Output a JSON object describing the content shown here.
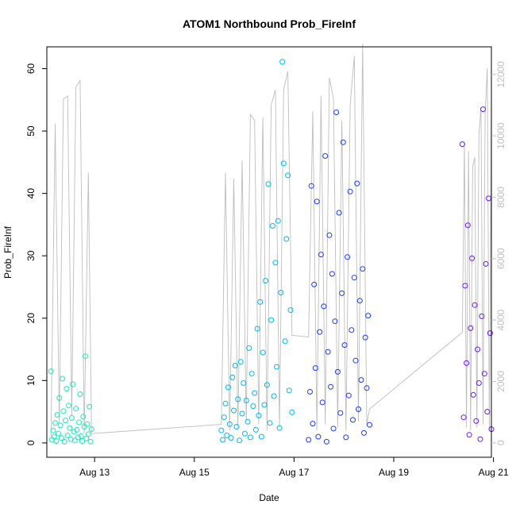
{
  "chart_data": {
    "type": "scatter",
    "title": "ATOM1 Northbound Prob_FireInf",
    "xlabel": "Date",
    "ylabel": "Prob_FireInf",
    "x_axis": {
      "type": "date",
      "range": [
        "2021-08-12T01:00",
        "2021-08-20T23:00"
      ],
      "ticks": [
        {
          "value": "2021-08-13",
          "label": "Aug 13"
        },
        {
          "value": "2021-08-15",
          "label": "Aug 15"
        },
        {
          "value": "2021-08-17",
          "label": "Aug 17"
        },
        {
          "value": "2021-08-19",
          "label": "Aug 19"
        },
        {
          "value": "2021-08-21",
          "label": "Aug 21"
        }
      ]
    },
    "y_left": {
      "range": [
        -2.3,
        63.5
      ],
      "ticks": [
        0,
        10,
        20,
        30,
        40,
        50,
        60
      ]
    },
    "y_right": {
      "range": [
        -470,
        12900
      ],
      "ticks": [
        0,
        2000,
        4000,
        6000,
        8000,
        10000,
        12000
      ]
    },
    "grid": false,
    "colors": {
      "series_1": "#1de9b6",
      "series_2": "#00b8f5",
      "series_3": "#1a3df2",
      "series_4": "#6a1af2",
      "secondary_line": "#bebebe"
    },
    "series": [
      {
        "color_key": "series_1",
        "points": [
          {
            "t": "2021-08-12T03:00",
            "y": 11.5
          },
          {
            "t": "2021-08-12T03:30",
            "y": 0.5
          },
          {
            "t": "2021-08-12T04:00",
            "y": 2.0
          },
          {
            "t": "2021-08-12T04:30",
            "y": 1.0
          },
          {
            "t": "2021-08-12T05:00",
            "y": 3.2
          },
          {
            "t": "2021-08-12T05:30",
            "y": 0.3
          },
          {
            "t": "2021-08-12T06:00",
            "y": 4.5
          },
          {
            "t": "2021-08-12T06:30",
            "y": 1.5
          },
          {
            "t": "2021-08-12T07:00",
            "y": 7.2
          },
          {
            "t": "2021-08-12T07:30",
            "y": 2.8
          },
          {
            "t": "2021-08-12T08:00",
            "y": 0.8
          },
          {
            "t": "2021-08-12T08:30",
            "y": 10.3
          },
          {
            "t": "2021-08-12T09:00",
            "y": 5.1
          },
          {
            "t": "2021-08-12T09:30",
            "y": 0.2
          },
          {
            "t": "2021-08-12T10:00",
            "y": 3.6
          },
          {
            "t": "2021-08-12T10:30",
            "y": 8.7
          },
          {
            "t": "2021-08-12T11:00",
            "y": 1.2
          },
          {
            "t": "2021-08-12T11:30",
            "y": 6.0
          },
          {
            "t": "2021-08-12T12:00",
            "y": 2.4
          },
          {
            "t": "2021-08-12T12:30",
            "y": 0.6
          },
          {
            "t": "2021-08-12T13:00",
            "y": 4.0
          },
          {
            "t": "2021-08-12T13:30",
            "y": 9.4
          },
          {
            "t": "2021-08-12T14:00",
            "y": 1.8
          },
          {
            "t": "2021-08-12T14:30",
            "y": 0.4
          },
          {
            "t": "2021-08-12T15:00",
            "y": 5.5
          },
          {
            "t": "2021-08-12T15:30",
            "y": 2.1
          },
          {
            "t": "2021-08-12T16:00",
            "y": 0.9
          },
          {
            "t": "2021-08-12T16:30",
            "y": 3.3
          },
          {
            "t": "2021-08-12T17:00",
            "y": 7.8
          },
          {
            "t": "2021-08-12T17:30",
            "y": 1.1
          },
          {
            "t": "2021-08-12T18:00",
            "y": 0.3
          },
          {
            "t": "2021-08-12T18:30",
            "y": 4.2
          },
          {
            "t": "2021-08-12T19:00",
            "y": 2.6
          },
          {
            "t": "2021-08-12T19:30",
            "y": 13.9
          },
          {
            "t": "2021-08-12T20:00",
            "y": 0.7
          },
          {
            "t": "2021-08-12T20:30",
            "y": 3.0
          },
          {
            "t": "2021-08-12T21:00",
            "y": 1.4
          },
          {
            "t": "2021-08-12T21:30",
            "y": 5.8
          },
          {
            "t": "2021-08-12T22:00",
            "y": 0.2
          },
          {
            "t": "2021-08-12T22:30",
            "y": 2.2
          }
        ]
      },
      {
        "color_key": "series_2",
        "points": [
          {
            "t": "2021-08-15T13:00",
            "y": 2.0
          },
          {
            "t": "2021-08-15T13:40",
            "y": 0.5
          },
          {
            "t": "2021-08-15T14:20",
            "y": 4.1
          },
          {
            "t": "2021-08-15T15:00",
            "y": 6.3
          },
          {
            "t": "2021-08-15T15:40",
            "y": 1.2
          },
          {
            "t": "2021-08-15T16:20",
            "y": 8.9
          },
          {
            "t": "2021-08-15T17:00",
            "y": 3.0
          },
          {
            "t": "2021-08-15T17:40",
            "y": 0.8
          },
          {
            "t": "2021-08-15T18:20",
            "y": 10.5
          },
          {
            "t": "2021-08-15T19:00",
            "y": 5.2
          },
          {
            "t": "2021-08-15T19:40",
            "y": 12.4
          },
          {
            "t": "2021-08-15T20:20",
            "y": 2.6
          },
          {
            "t": "2021-08-15T21:00",
            "y": 7.0
          },
          {
            "t": "2021-08-15T21:40",
            "y": 0.4
          },
          {
            "t": "2021-08-15T22:20",
            "y": 13.0
          },
          {
            "t": "2021-08-15T23:00",
            "y": 4.7
          },
          {
            "t": "2021-08-15T23:40",
            "y": 9.6
          },
          {
            "t": "2021-08-16T00:20",
            "y": 1.5
          },
          {
            "t": "2021-08-16T01:00",
            "y": 6.8
          },
          {
            "t": "2021-08-16T01:40",
            "y": 3.4
          },
          {
            "t": "2021-08-16T02:20",
            "y": 15.2
          },
          {
            "t": "2021-08-16T03:00",
            "y": 0.9
          },
          {
            "t": "2021-08-16T03:40",
            "y": 11.1
          },
          {
            "t": "2021-08-16T04:20",
            "y": 5.9
          },
          {
            "t": "2021-08-16T05:00",
            "y": 8.0
          },
          {
            "t": "2021-08-16T05:40",
            "y": 2.1
          },
          {
            "t": "2021-08-16T06:20",
            "y": 18.3
          },
          {
            "t": "2021-08-16T07:00",
            "y": 4.4
          },
          {
            "t": "2021-08-16T07:40",
            "y": 22.6
          },
          {
            "t": "2021-08-16T08:20",
            "y": 1.0
          },
          {
            "t": "2021-08-16T09:00",
            "y": 14.5
          },
          {
            "t": "2021-08-16T09:40",
            "y": 6.1
          },
          {
            "t": "2021-08-16T10:20",
            "y": 26.0
          },
          {
            "t": "2021-08-16T11:00",
            "y": 9.3
          },
          {
            "t": "2021-08-16T11:40",
            "y": 41.5
          },
          {
            "t": "2021-08-16T12:20",
            "y": 3.2
          },
          {
            "t": "2021-08-16T13:00",
            "y": 19.7
          },
          {
            "t": "2021-08-16T13:40",
            "y": 34.8
          },
          {
            "t": "2021-08-16T14:20",
            "y": 7.5
          },
          {
            "t": "2021-08-16T15:00",
            "y": 28.9
          },
          {
            "t": "2021-08-16T15:40",
            "y": 12.2
          },
          {
            "t": "2021-08-16T16:20",
            "y": 35.6
          },
          {
            "t": "2021-08-16T17:00",
            "y": 2.4
          },
          {
            "t": "2021-08-16T17:40",
            "y": 24.1
          },
          {
            "t": "2021-08-16T18:20",
            "y": 61.1
          },
          {
            "t": "2021-08-16T19:00",
            "y": 44.8
          },
          {
            "t": "2021-08-16T19:40",
            "y": 16.3
          },
          {
            "t": "2021-08-16T20:20",
            "y": 32.7
          },
          {
            "t": "2021-08-16T21:00",
            "y": 42.9
          },
          {
            "t": "2021-08-16T21:40",
            "y": 8.4
          },
          {
            "t": "2021-08-16T22:20",
            "y": 21.3
          },
          {
            "t": "2021-08-16T23:00",
            "y": 4.9
          }
        ]
      },
      {
        "color_key": "series_3",
        "points": [
          {
            "t": "2021-08-17T07:00",
            "y": 0.5
          },
          {
            "t": "2021-08-17T07:40",
            "y": 8.2
          },
          {
            "t": "2021-08-17T08:20",
            "y": 41.2
          },
          {
            "t": "2021-08-17T09:00",
            "y": 3.1
          },
          {
            "t": "2021-08-17T09:40",
            "y": 25.4
          },
          {
            "t": "2021-08-17T10:20",
            "y": 12.0
          },
          {
            "t": "2021-08-17T11:00",
            "y": 38.7
          },
          {
            "t": "2021-08-17T11:40",
            "y": 1.0
          },
          {
            "t": "2021-08-17T12:20",
            "y": 17.8
          },
          {
            "t": "2021-08-17T13:00",
            "y": 30.2
          },
          {
            "t": "2021-08-17T13:40",
            "y": 6.5
          },
          {
            "t": "2021-08-17T14:20",
            "y": 21.9
          },
          {
            "t": "2021-08-17T15:00",
            "y": 46.0
          },
          {
            "t": "2021-08-17T15:40",
            "y": 0.2
          },
          {
            "t": "2021-08-17T16:20",
            "y": 14.6
          },
          {
            "t": "2021-08-17T17:00",
            "y": 33.3
          },
          {
            "t": "2021-08-17T17:40",
            "y": 9.0
          },
          {
            "t": "2021-08-17T18:20",
            "y": 27.1
          },
          {
            "t": "2021-08-17T19:00",
            "y": 2.3
          },
          {
            "t": "2021-08-17T19:40",
            "y": 19.5
          },
          {
            "t": "2021-08-17T20:20",
            "y": 53.0
          },
          {
            "t": "2021-08-17T21:00",
            "y": 11.4
          },
          {
            "t": "2021-08-17T21:40",
            "y": 36.9
          },
          {
            "t": "2021-08-17T22:20",
            "y": 4.8
          },
          {
            "t": "2021-08-17T23:00",
            "y": 24.0
          },
          {
            "t": "2021-08-17T23:40",
            "y": 48.2
          },
          {
            "t": "2021-08-18T00:20",
            "y": 15.7
          },
          {
            "t": "2021-08-18T01:00",
            "y": 0.9
          },
          {
            "t": "2021-08-18T01:40",
            "y": 29.8
          },
          {
            "t": "2021-08-18T02:20",
            "y": 7.6
          },
          {
            "t": "2021-08-18T03:00",
            "y": 40.3
          },
          {
            "t": "2021-08-18T03:40",
            "y": 18.1
          },
          {
            "t": "2021-08-18T04:20",
            "y": 3.7
          },
          {
            "t": "2021-08-18T05:00",
            "y": 26.5
          },
          {
            "t": "2021-08-18T05:40",
            "y": 13.2
          },
          {
            "t": "2021-08-18T06:20",
            "y": 41.6
          },
          {
            "t": "2021-08-18T07:00",
            "y": 5.4
          },
          {
            "t": "2021-08-18T07:40",
            "y": 22.8
          },
          {
            "t": "2021-08-18T08:20",
            "y": 10.1
          },
          {
            "t": "2021-08-18T09:00",
            "y": 27.9
          },
          {
            "t": "2021-08-18T09:40",
            "y": 1.6
          },
          {
            "t": "2021-08-18T10:20",
            "y": 16.9
          },
          {
            "t": "2021-08-18T11:00",
            "y": 8.8
          },
          {
            "t": "2021-08-18T11:40",
            "y": 20.4
          },
          {
            "t": "2021-08-18T12:20",
            "y": 2.9
          }
        ]
      },
      {
        "color_key": "series_4",
        "points": [
          {
            "t": "2021-08-20T09:00",
            "y": 47.9
          },
          {
            "t": "2021-08-20T09:40",
            "y": 4.1
          },
          {
            "t": "2021-08-20T10:20",
            "y": 25.2
          },
          {
            "t": "2021-08-20T11:00",
            "y": 12.8
          },
          {
            "t": "2021-08-20T11:40",
            "y": 34.9
          },
          {
            "t": "2021-08-20T12:20",
            "y": 1.3
          },
          {
            "t": "2021-08-20T13:00",
            "y": 18.4
          },
          {
            "t": "2021-08-20T13:40",
            "y": 29.6
          },
          {
            "t": "2021-08-20T14:20",
            "y": 7.7
          },
          {
            "t": "2021-08-20T15:00",
            "y": 22.1
          },
          {
            "t": "2021-08-20T15:40",
            "y": 3.5
          },
          {
            "t": "2021-08-20T16:20",
            "y": 15.0
          },
          {
            "t": "2021-08-20T17:00",
            "y": 9.6
          },
          {
            "t": "2021-08-20T17:40",
            "y": 0.6
          },
          {
            "t": "2021-08-20T18:20",
            "y": 20.3
          },
          {
            "t": "2021-08-20T19:00",
            "y": 53.5
          },
          {
            "t": "2021-08-20T19:40",
            "y": 11.1
          },
          {
            "t": "2021-08-20T20:20",
            "y": 28.7
          },
          {
            "t": "2021-08-20T21:00",
            "y": 5.0
          },
          {
            "t": "2021-08-20T21:40",
            "y": 39.2
          },
          {
            "t": "2021-08-20T22:20",
            "y": 17.6
          },
          {
            "t": "2021-08-20T23:00",
            "y": 2.2
          }
        ]
      }
    ],
    "secondary_series": [
      {
        "t": "2021-08-12T03:00",
        "y": 200
      },
      {
        "t": "2021-08-12T05:00",
        "y": 10400
      },
      {
        "t": "2021-08-12T07:00",
        "y": 600
      },
      {
        "t": "2021-08-12T09:00",
        "y": 11200
      },
      {
        "t": "2021-08-12T11:00",
        "y": 11300
      },
      {
        "t": "2021-08-12T13:00",
        "y": 900
      },
      {
        "t": "2021-08-12T15:00",
        "y": 11600
      },
      {
        "t": "2021-08-12T17:00",
        "y": 11800
      },
      {
        "t": "2021-08-12T19:00",
        "y": 300
      },
      {
        "t": "2021-08-12T21:00",
        "y": 8800
      },
      {
        "t": "2021-08-12T22:30",
        "y": 300
      },
      {
        "t": "2021-08-15T13:00",
        "y": 600
      },
      {
        "t": "2021-08-15T15:00",
        "y": 8800
      },
      {
        "t": "2021-08-15T17:00",
        "y": 400
      },
      {
        "t": "2021-08-15T19:00",
        "y": 8600
      },
      {
        "t": "2021-08-15T21:00",
        "y": 500
      },
      {
        "t": "2021-08-15T23:00",
        "y": 9200
      },
      {
        "t": "2021-08-16T01:00",
        "y": 700
      },
      {
        "t": "2021-08-16T03:00",
        "y": 10700
      },
      {
        "t": "2021-08-16T05:00",
        "y": 10500
      },
      {
        "t": "2021-08-16T07:00",
        "y": 600
      },
      {
        "t": "2021-08-16T09:00",
        "y": 10600
      },
      {
        "t": "2021-08-16T11:00",
        "y": 400
      },
      {
        "t": "2021-08-16T13:00",
        "y": 11000
      },
      {
        "t": "2021-08-16T15:00",
        "y": 11500
      },
      {
        "t": "2021-08-16T17:00",
        "y": 500
      },
      {
        "t": "2021-08-16T19:00",
        "y": 11500
      },
      {
        "t": "2021-08-16T21:00",
        "y": 12100
      },
      {
        "t": "2021-08-16T23:00",
        "y": 3500
      },
      {
        "t": "2021-08-17T07:00",
        "y": 3450
      },
      {
        "t": "2021-08-17T09:00",
        "y": 10800
      },
      {
        "t": "2021-08-17T11:00",
        "y": 400
      },
      {
        "t": "2021-08-17T13:00",
        "y": 11300
      },
      {
        "t": "2021-08-17T15:00",
        "y": 600
      },
      {
        "t": "2021-08-17T17:00",
        "y": 11900
      },
      {
        "t": "2021-08-17T19:00",
        "y": 11200
      },
      {
        "t": "2021-08-17T21:00",
        "y": 500
      },
      {
        "t": "2021-08-17T23:00",
        "y": 10500
      },
      {
        "t": "2021-08-18T01:00",
        "y": 400
      },
      {
        "t": "2021-08-18T03:00",
        "y": 11000
      },
      {
        "t": "2021-08-18T05:00",
        "y": 12600
      },
      {
        "t": "2021-08-18T07:00",
        "y": 700
      },
      {
        "t": "2021-08-18T09:00",
        "y": 13000
      },
      {
        "t": "2021-08-18T11:00",
        "y": 600
      },
      {
        "t": "2021-08-18T12:20",
        "y": 1100
      },
      {
        "t": "2021-08-20T09:00",
        "y": 3600
      },
      {
        "t": "2021-08-20T10:00",
        "y": 9800
      },
      {
        "t": "2021-08-20T11:00",
        "y": 500
      },
      {
        "t": "2021-08-20T12:00",
        "y": 9500
      },
      {
        "t": "2021-08-20T13:00",
        "y": 400
      },
      {
        "t": "2021-08-20T14:00",
        "y": 9000
      },
      {
        "t": "2021-08-20T15:00",
        "y": 9300
      },
      {
        "t": "2021-08-20T16:00",
        "y": 500
      },
      {
        "t": "2021-08-20T17:00",
        "y": 10100
      },
      {
        "t": "2021-08-20T18:00",
        "y": 10900
      },
      {
        "t": "2021-08-20T19:00",
        "y": 600
      },
      {
        "t": "2021-08-20T20:00",
        "y": 10700
      },
      {
        "t": "2021-08-20T21:00",
        "y": 12200
      },
      {
        "t": "2021-08-20T22:00",
        "y": 400
      },
      {
        "t": "2021-08-20T23:00",
        "y": 11300
      }
    ]
  }
}
